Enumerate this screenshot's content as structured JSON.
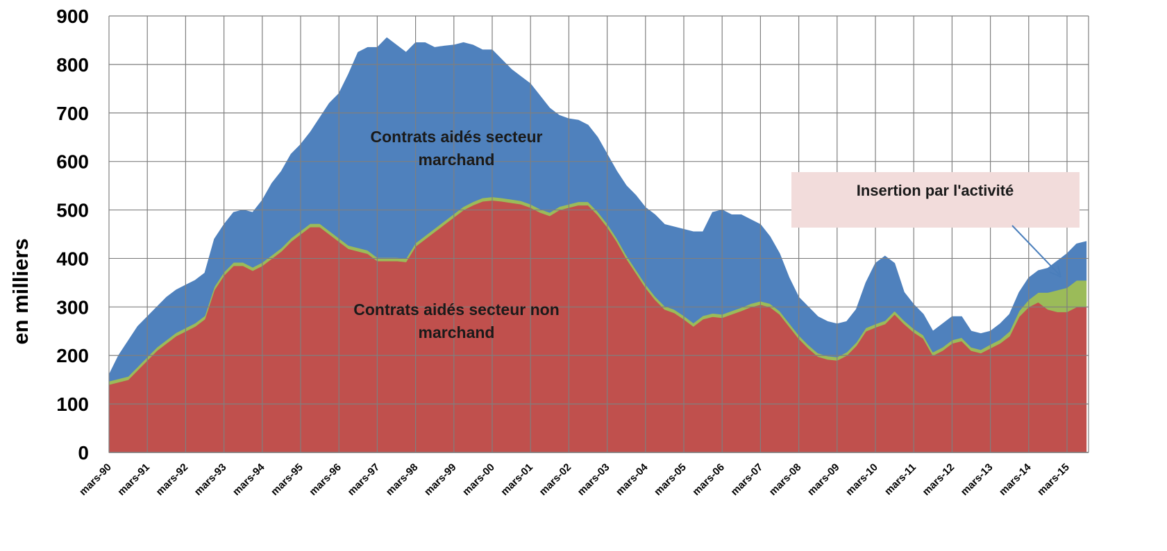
{
  "chart_data": {
    "type": "stacked_area",
    "y_label": "en milliers",
    "categories": [
      "mars-90",
      null,
      null,
      null,
      "mars-91",
      null,
      null,
      null,
      "mars-92",
      null,
      null,
      null,
      "mars-93",
      null,
      null,
      null,
      "mars-94",
      null,
      null,
      null,
      "mars-95",
      null,
      null,
      null,
      "mars-96",
      null,
      null,
      null,
      "mars-97",
      null,
      null,
      null,
      "mars-98",
      null,
      null,
      null,
      "mars-99",
      null,
      null,
      null,
      "mars-00",
      null,
      null,
      null,
      "mars-01",
      null,
      null,
      null,
      "mars-02",
      null,
      null,
      null,
      "mars-03",
      null,
      null,
      null,
      "mars-04",
      null,
      null,
      null,
      "mars-05",
      null,
      null,
      null,
      "mars-06",
      null,
      null,
      null,
      "mars-07",
      null,
      null,
      null,
      "mars-08",
      null,
      null,
      null,
      "mars-09",
      null,
      null,
      null,
      "mars-10",
      null,
      null,
      null,
      "mars-11",
      null,
      null,
      null,
      "mars-12",
      null,
      null,
      null,
      "mars-13",
      null,
      null,
      null,
      "mars-14",
      null,
      null,
      null,
      "mars-15",
      null,
      null
    ],
    "series": [
      {
        "name": "Contrats aidés secteur non marchand",
        "color": "#c0504d",
        "values": [
          140,
          145,
          150,
          170,
          190,
          210,
          225,
          240,
          250,
          260,
          275,
          335,
          365,
          385,
          385,
          375,
          385,
          400,
          415,
          435,
          450,
          465,
          465,
          450,
          435,
          420,
          415,
          410,
          395,
          395,
          395,
          393,
          425,
          440,
          455,
          470,
          485,
          500,
          510,
          518,
          520,
          518,
          515,
          512,
          505,
          495,
          488,
          500,
          505,
          510,
          510,
          490,
          465,
          435,
          400,
          370,
          340,
          315,
          295,
          288,
          275,
          260,
          275,
          280,
          278,
          285,
          292,
          300,
          305,
          300,
          285,
          260,
          235,
          215,
          198,
          192,
          190,
          200,
          220,
          250,
          258,
          265,
          285,
          265,
          248,
          235,
          200,
          210,
          225,
          230,
          210,
          205,
          215,
          225,
          240,
          280,
          300,
          310,
          295,
          290,
          290,
          300,
          300
        ]
      },
      {
        "name": "Insertion par l'activité",
        "color": "#9bbb59",
        "values": [
          7,
          7,
          7,
          7,
          7,
          7,
          7,
          7,
          7,
          7,
          7,
          7,
          7,
          7,
          7,
          7,
          7,
          7,
          7,
          7,
          7,
          7,
          7,
          7,
          7,
          7,
          7,
          7,
          7,
          7,
          7,
          7,
          7,
          7,
          7,
          7,
          7,
          7,
          7,
          7,
          7,
          7,
          7,
          7,
          7,
          7,
          7,
          7,
          7,
          7,
          7,
          7,
          7,
          7,
          7,
          7,
          7,
          7,
          7,
          7,
          7,
          7,
          7,
          7,
          7,
          7,
          7,
          7,
          7,
          7,
          7,
          7,
          7,
          7,
          7,
          7,
          7,
          7,
          7,
          7,
          7,
          7,
          7,
          7,
          7,
          7,
          7,
          7,
          7,
          7,
          7,
          7,
          8,
          8,
          10,
          12,
          15,
          20,
          35,
          45,
          50,
          55,
          55
        ]
      },
      {
        "name": "Contrats aidés secteur marchand",
        "color": "#4f81bd",
        "values": [
          13,
          48,
          73,
          83,
          83,
          83,
          88,
          88,
          88,
          88,
          88,
          98,
          98,
          103,
          108,
          113,
          128,
          148,
          158,
          173,
          178,
          188,
          218,
          263,
          298,
          353,
          403,
          418,
          433,
          453,
          438,
          425,
          413,
          398,
          373,
          361,
          348,
          338,
          323,
          305,
          303,
          285,
          268,
          256,
          248,
          233,
          215,
          188,
          176,
          168,
          158,
          153,
          143,
          138,
          143,
          153,
          158,
          168,
          168,
          170,
          178,
          188,
          173,
          208,
          215,
          198,
          191,
          173,
          158,
          138,
          118,
          93,
          78,
          78,
          75,
          71,
          68,
          63,
          68,
          93,
          125,
          133,
          98,
          58,
          50,
          43,
          43,
          48,
          48,
          43,
          33,
          33,
          27,
          32,
          35,
          38,
          45,
          45,
          50,
          60,
          70,
          75,
          80
        ]
      }
    ],
    "ylim": [
      0,
      900
    ],
    "yticks": [
      0,
      100,
      200,
      300,
      400,
      500,
      600,
      700,
      800,
      900
    ],
    "grid": true
  }
}
